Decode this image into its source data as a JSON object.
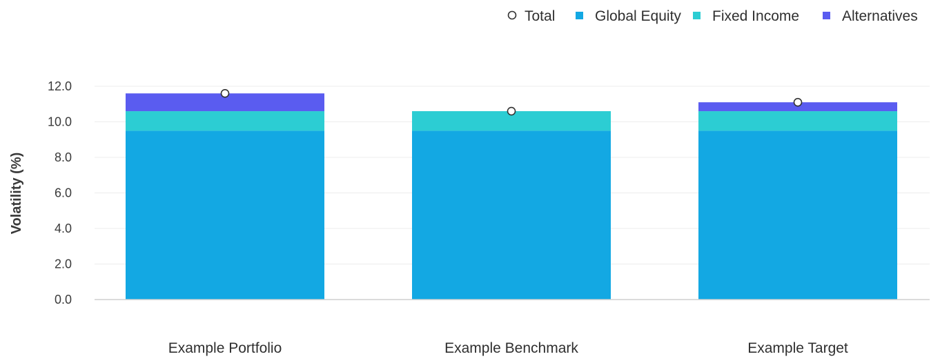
{
  "chart_data": {
    "type": "bar",
    "stacked": true,
    "categories": [
      "Example Portfolio",
      "Example Benchmark",
      "Example Target"
    ],
    "series": [
      {
        "name": "Global Equity",
        "values": [
          9.5,
          9.5,
          9.5
        ],
        "color": "#13a8e3"
      },
      {
        "name": "Fixed Income",
        "values": [
          1.1,
          1.1,
          1.1
        ],
        "color": "#2ccdd3"
      },
      {
        "name": "Alternatives",
        "values": [
          1.0,
          0.0,
          0.5
        ],
        "color": "#5a5cf0"
      }
    ],
    "total": {
      "name": "Total",
      "values": [
        11.6,
        10.6,
        11.1
      ],
      "marker": "circle"
    },
    "ylabel": "Volatility (%)",
    "xlabel": "",
    "ylim": [
      0,
      12
    ],
    "yticks": [
      "0.0",
      "2.0",
      "4.0",
      "6.0",
      "8.0",
      "10.0",
      "12.0"
    ],
    "legend_position": "top-right",
    "grid": true
  }
}
